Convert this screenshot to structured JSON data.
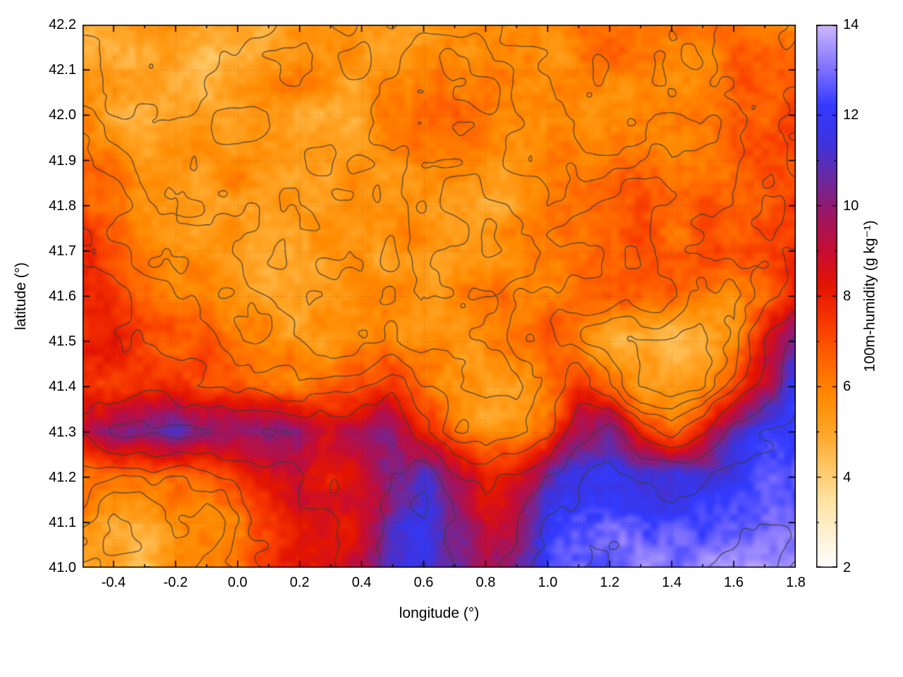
{
  "chart_data": {
    "type": "heatmap",
    "xlabel": "longitude (°)",
    "ylabel": "latitude (°)",
    "colorbar_label": "100m-humidity (g kg⁻¹)",
    "xlim": [
      -0.5,
      1.8
    ],
    "ylim": [
      41.0,
      42.2
    ],
    "zlim": [
      2,
      14
    ],
    "grid_on": true,
    "xticks": [
      {
        "value": -0.4,
        "label": "-0.4"
      },
      {
        "value": -0.2,
        "label": "-0.2"
      },
      {
        "value": 0.0,
        "label": "0.0"
      },
      {
        "value": 0.2,
        "label": "0.2"
      },
      {
        "value": 0.4,
        "label": "0.4"
      },
      {
        "value": 0.6,
        "label": "0.6"
      },
      {
        "value": 0.8,
        "label": "0.8"
      },
      {
        "value": 1.0,
        "label": "1.0"
      },
      {
        "value": 1.2,
        "label": "1.2"
      },
      {
        "value": 1.4,
        "label": "1.4"
      },
      {
        "value": 1.6,
        "label": "1.6"
      },
      {
        "value": 1.8,
        "label": "1.8"
      }
    ],
    "x_minor_ticks": [
      -0.3,
      -0.1,
      0.1,
      0.3,
      0.5,
      0.7,
      0.9,
      1.1,
      1.3,
      1.5,
      1.7
    ],
    "yticks": [
      {
        "value": 41.0,
        "label": "41.0"
      },
      {
        "value": 41.1,
        "label": "41.1"
      },
      {
        "value": 41.2,
        "label": "41.2"
      },
      {
        "value": 41.3,
        "label": "41.3"
      },
      {
        "value": 41.4,
        "label": "41.4"
      },
      {
        "value": 41.5,
        "label": "41.5"
      },
      {
        "value": 41.6,
        "label": "41.6"
      },
      {
        "value": 41.7,
        "label": "41.7"
      },
      {
        "value": 41.8,
        "label": "41.8"
      },
      {
        "value": 41.9,
        "label": "41.9"
      },
      {
        "value": 42.0,
        "label": "42.0"
      },
      {
        "value": 42.1,
        "label": "42.1"
      },
      {
        "value": 42.2,
        "label": "42.2"
      }
    ],
    "colorbar_ticks": [
      {
        "value": 2,
        "label": "2"
      },
      {
        "value": 4,
        "label": "4"
      },
      {
        "value": 6,
        "label": "6"
      },
      {
        "value": 8,
        "label": "8"
      },
      {
        "value": 10,
        "label": "10"
      },
      {
        "value": 12,
        "label": "12"
      },
      {
        "value": 14,
        "label": "14"
      }
    ],
    "colorbar_minor_ticks": [
      3,
      5,
      7,
      9,
      11,
      13
    ],
    "colormap_stops": [
      [
        2.0,
        "#ffffff"
      ],
      [
        2.7,
        "#fff3d6"
      ],
      [
        3.5,
        "#ffe2a0"
      ],
      [
        4.3,
        "#ffc45e"
      ],
      [
        5.0,
        "#ffa526"
      ],
      [
        5.8,
        "#ff8a00"
      ],
      [
        6.6,
        "#ff6400"
      ],
      [
        7.4,
        "#f83a00"
      ],
      [
        8.2,
        "#e51600"
      ],
      [
        9.0,
        "#c60d33"
      ],
      [
        9.8,
        "#9e1663"
      ],
      [
        10.6,
        "#6b2aa0"
      ],
      [
        11.4,
        "#3d34de"
      ],
      [
        12.2,
        "#333bff"
      ],
      [
        13.0,
        "#7e6fff"
      ],
      [
        14.0,
        "#cdb8fb"
      ]
    ],
    "contour_color": "#3c3c3c",
    "contour_levels": [
      5.0,
      5.7,
      6.4,
      7.3,
      8.6,
      10.2,
      11.8,
      13.0
    ],
    "grid": {
      "note": "estimated 100m-humidity (g/kg) sampled on a coarse lon-lat grid; rows ordered north to south",
      "lon": [
        -0.5,
        -0.4,
        -0.3,
        -0.2,
        -0.1,
        0.0,
        0.1,
        0.2,
        0.3,
        0.4,
        0.5,
        0.6,
        0.7,
        0.8,
        0.9,
        1.0,
        1.1,
        1.2,
        1.3,
        1.4,
        1.5,
        1.6,
        1.7,
        1.8
      ],
      "lat": [
        42.2,
        42.1,
        42.0,
        41.9,
        41.8,
        41.7,
        41.6,
        41.5,
        41.4,
        41.3,
        41.2,
        41.1,
        41.0
      ],
      "values": [
        [
          5.2,
          5.0,
          5.0,
          5.2,
          5.0,
          4.8,
          5.0,
          5.4,
          5.6,
          5.2,
          5.0,
          5.4,
          5.8,
          6.0,
          5.6,
          5.8,
          6.2,
          6.4,
          6.0,
          5.8,
          6.2,
          6.6,
          6.4,
          6.2
        ],
        [
          5.4,
          5.2,
          5.0,
          4.9,
          4.8,
          5.0,
          5.4,
          5.8,
          5.4,
          5.1,
          5.4,
          5.8,
          6.0,
          6.2,
          6.0,
          5.8,
          6.0,
          6.2,
          6.0,
          5.9,
          6.1,
          6.5,
          7.0,
          6.8
        ],
        [
          5.6,
          5.3,
          5.1,
          5.0,
          5.2,
          5.5,
          5.6,
          5.3,
          5.1,
          5.3,
          5.8,
          6.0,
          6.2,
          6.0,
          5.8,
          5.6,
          5.8,
          6.0,
          5.8,
          5.6,
          5.9,
          6.3,
          6.8,
          7.0
        ],
        [
          6.6,
          6.0,
          5.6,
          5.3,
          5.5,
          5.8,
          5.6,
          5.3,
          5.1,
          5.5,
          5.8,
          6.0,
          6.0,
          5.8,
          5.6,
          5.6,
          5.9,
          6.1,
          6.3,
          6.1,
          6.3,
          6.6,
          7.0,
          7.2
        ],
        [
          7.1,
          6.6,
          6.0,
          5.6,
          5.5,
          5.5,
          5.3,
          5.1,
          5.3,
          5.6,
          5.6,
          5.8,
          5.6,
          5.3,
          5.6,
          5.9,
          6.1,
          6.3,
          6.6,
          6.3,
          6.6,
          6.9,
          7.2,
          7.4
        ],
        [
          7.5,
          7.0,
          6.3,
          5.8,
          5.5,
          5.3,
          5.1,
          5.1,
          5.3,
          5.6,
          5.3,
          5.6,
          5.6,
          5.3,
          5.6,
          5.9,
          6.1,
          6.6,
          6.9,
          6.6,
          6.9,
          7.1,
          7.1,
          7.4
        ],
        [
          7.8,
          7.3,
          6.6,
          6.3,
          6.1,
          5.6,
          5.3,
          5.1,
          5.3,
          5.6,
          5.6,
          5.3,
          5.6,
          5.9,
          6.1,
          6.3,
          6.6,
          6.9,
          7.1,
          6.6,
          5.6,
          5.1,
          6.6,
          7.8
        ],
        [
          7.6,
          7.9,
          7.1,
          6.6,
          6.9,
          6.1,
          5.6,
          5.3,
          5.1,
          5.3,
          5.6,
          5.9,
          5.6,
          5.9,
          6.6,
          7.1,
          6.1,
          5.1,
          4.9,
          4.6,
          4.9,
          5.6,
          8.2,
          10.8
        ],
        [
          7.4,
          7.8,
          8.0,
          7.9,
          7.5,
          7.2,
          6.8,
          6.3,
          6.6,
          7.2,
          7.8,
          6.6,
          5.6,
          5.2,
          5.4,
          6.2,
          7.4,
          6.4,
          5.2,
          4.9,
          5.2,
          6.8,
          9.6,
          11.6
        ],
        [
          8.8,
          10.2,
          10.8,
          10.8,
          10.4,
          10.0,
          10.4,
          9.6,
          9.0,
          9.6,
          10.0,
          8.0,
          6.2,
          5.6,
          6.0,
          6.8,
          9.8,
          10.8,
          8.0,
          7.0,
          8.2,
          10.8,
          12.0,
          12.4
        ],
        [
          6.4,
          6.0,
          6.2,
          6.6,
          7.0,
          7.6,
          8.2,
          8.8,
          8.4,
          8.8,
          10.2,
          11.2,
          9.2,
          8.0,
          8.8,
          10.4,
          11.6,
          11.8,
          11.2,
          11.0,
          11.6,
          12.0,
          12.4,
          12.6
        ],
        [
          5.6,
          5.1,
          5.4,
          6.0,
          5.6,
          6.4,
          7.2,
          8.2,
          8.0,
          8.6,
          10.8,
          11.8,
          10.2,
          8.8,
          9.6,
          11.6,
          12.2,
          12.4,
          12.6,
          12.5,
          12.4,
          12.7,
          12.9,
          13.1
        ],
        [
          5.2,
          5.0,
          4.8,
          5.4,
          5.8,
          6.2,
          7.0,
          8.2,
          8.8,
          9.4,
          11.4,
          12.2,
          10.6,
          9.2,
          10.4,
          12.2,
          12.8,
          13.0,
          13.1,
          13.0,
          13.1,
          13.3,
          13.4,
          13.5
        ]
      ]
    }
  }
}
